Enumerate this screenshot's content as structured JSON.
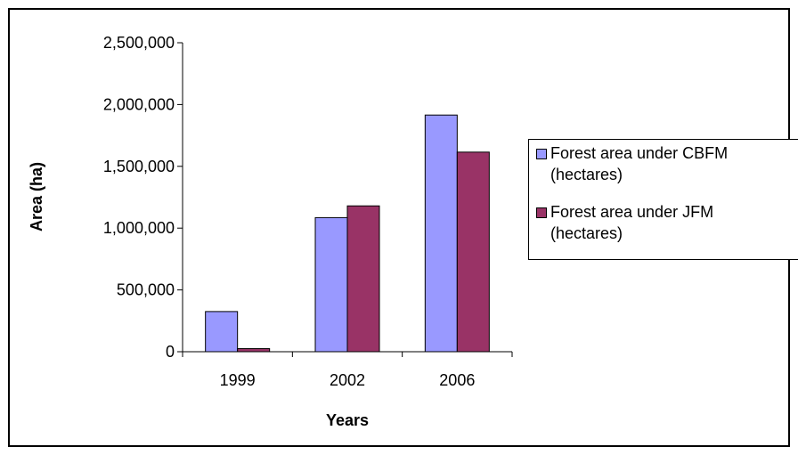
{
  "chart_data": {
    "type": "bar",
    "title": "",
    "xlabel": "Years",
    "ylabel": "Area (ha)",
    "categories": [
      "1999",
      "2002",
      "2006"
    ],
    "series": [
      {
        "name": "Forest area under CBFM\n(hectares)",
        "values": [
          325000,
          1085000,
          1915000
        ],
        "color": "#9999ff"
      },
      {
        "name": "Forest area under JFM\n(hectares)",
        "values": [
          25000,
          1180000,
          1615000
        ],
        "color": "#993366"
      }
    ],
    "ylim": [
      0,
      2500000
    ],
    "yticks": [
      0,
      500000,
      1000000,
      1500000,
      2000000,
      2500000
    ],
    "ytick_labels": [
      "0",
      "500,000",
      "1,000,000",
      "1,500,000",
      "2,000,000",
      "2,500,000"
    ],
    "grid": false,
    "legend_position": "right"
  }
}
